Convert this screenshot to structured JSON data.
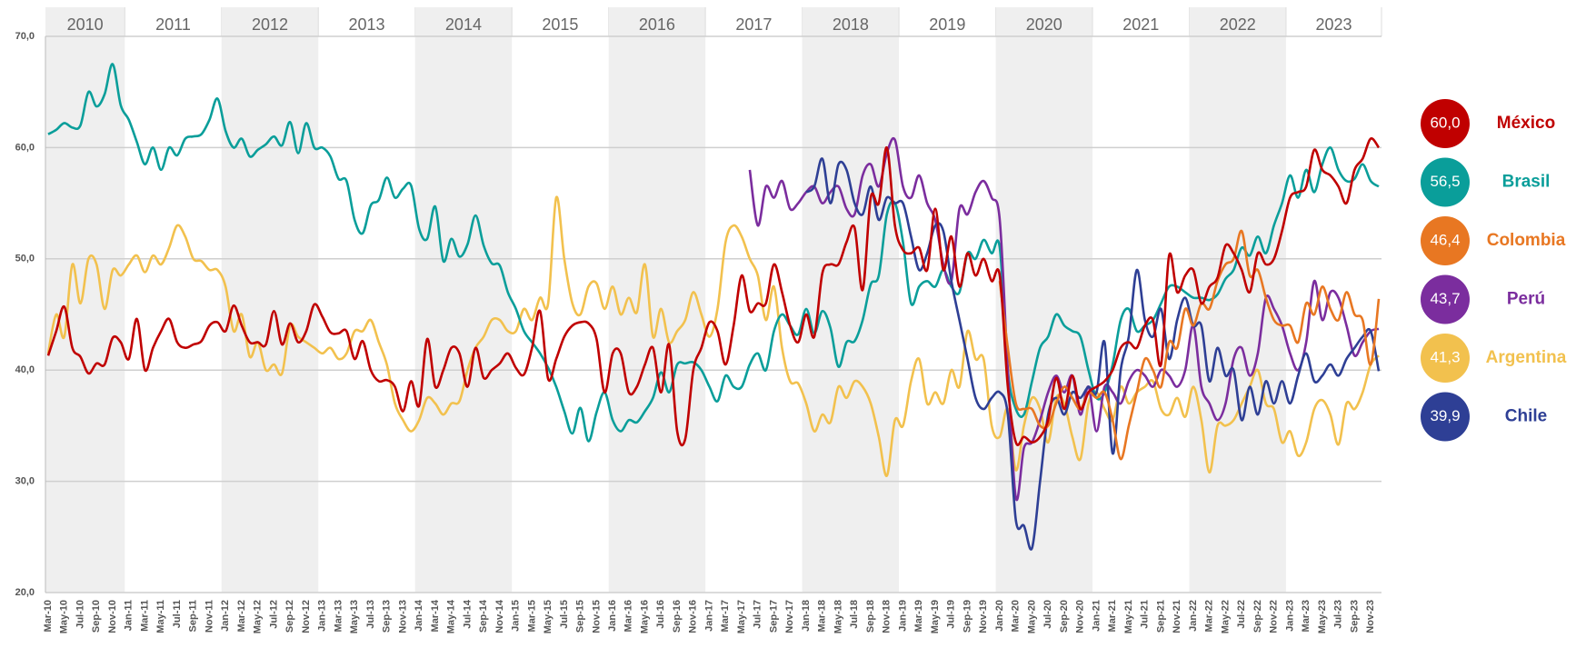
{
  "chart_data": {
    "type": "line",
    "categories": [
      "Mar-10",
      null,
      "May-10",
      null,
      "Jul-10",
      null,
      "Sep-10",
      null,
      "Nov-10",
      null,
      "Jan-11",
      null,
      "Mar-11",
      null,
      "May-11",
      null,
      "Jul-11",
      null,
      "Sep-11",
      null,
      "Nov-11",
      null,
      "Jan-12",
      null,
      "Mar-12",
      null,
      "May-12",
      null,
      "Jul-12",
      null,
      "Sep-12",
      null,
      "Nov-12",
      null,
      "Jan-13",
      null,
      "Mar-13",
      null,
      "May-13",
      null,
      "Jul-13",
      null,
      "Sep-13",
      null,
      "Nov-13",
      null,
      "Jan-14",
      null,
      "Mar-14",
      null,
      "May-14",
      null,
      "Jul-14",
      null,
      "Sep-14",
      null,
      "Nov-14",
      null,
      "Jan-15",
      null,
      "Mar-15",
      null,
      "May-15",
      null,
      "Jul-15",
      null,
      "Sep-15",
      null,
      "Nov-15",
      null,
      "Jan-16",
      null,
      "Mar-16",
      null,
      "May-16",
      null,
      "Jul-16",
      null,
      "Sep-16",
      null,
      "Nov-16",
      null,
      "Jan-17",
      null,
      "Mar-17",
      null,
      "May-17",
      null,
      "Jul-17",
      null,
      "Sep-17",
      null,
      "Nov-17",
      null,
      "Jan-18",
      null,
      "Mar-18",
      null,
      "May-18",
      null,
      "Jul-18",
      null,
      "Sep-18",
      null,
      "Nov-18",
      null,
      "Jan-19",
      null,
      "Mar-19",
      null,
      "May-19",
      null,
      "Jul-19",
      null,
      "Sep-19",
      null,
      "Nov-19",
      null,
      "Jan-20",
      null,
      "Mar-20",
      null,
      "May-20",
      null,
      "Jul-20",
      null,
      "Sep-20",
      null,
      "Nov-20",
      null,
      "Jan-21",
      null,
      "Mar-21",
      null,
      "May-21",
      null,
      "Jul-21",
      null,
      "Sep-21",
      null,
      "Nov-21",
      null,
      "Jan-22",
      null,
      "Mar-22",
      null,
      "May-22",
      null,
      "Jul-22",
      null,
      "Sep-22",
      null,
      "Nov-22",
      null,
      "Jan-23",
      null,
      "Mar-23",
      null,
      "May-23",
      null,
      "Jul-23",
      null,
      "Sep-23",
      null,
      "Nov-23",
      null
    ],
    "years": [
      "2010",
      "2011",
      "2012",
      "2013",
      "2014",
      "2015",
      "2016",
      "2017",
      "2018",
      "2019",
      "2020",
      "2021",
      "2022",
      "2023"
    ],
    "shade_alternate_years": true,
    "ylim": [
      20,
      70
    ],
    "yticks": [
      {
        "value": 20,
        "label": "20,0"
      },
      {
        "value": 30,
        "label": "30,0"
      },
      {
        "value": 40,
        "label": "40,0"
      },
      {
        "value": 50,
        "label": "50,0"
      },
      {
        "value": 60,
        "label": "60,0"
      },
      {
        "value": 70,
        "label": "70,0"
      }
    ],
    "grid": true,
    "series": [
      {
        "name": "México",
        "color": "#c00000",
        "last_label": "60,0",
        "values": [
          41.3,
          43.5,
          45.7,
          42.0,
          41.2,
          39.7,
          40.6,
          40.5,
          42.9,
          42.5,
          41.0,
          44.6,
          40.0,
          42.0,
          43.5,
          44.6,
          42.5,
          42.0,
          42.3,
          42.6,
          44.0,
          44.3,
          43.5,
          45.8,
          44.0,
          42.5,
          42.5,
          42.3,
          45.3,
          42.3,
          44.2,
          42.5,
          43.5,
          45.9,
          44.8,
          43.4,
          43.3,
          43.5,
          41.0,
          42.6,
          40.0,
          39.0,
          39.1,
          38.5,
          36.3,
          39.0,
          36.8,
          42.8,
          38.5,
          40.0,
          42.0,
          41.5,
          38.5,
          42.0,
          39.3,
          40.0,
          40.6,
          41.5,
          40.2,
          39.6,
          42.0,
          45.3,
          39.2,
          41.0,
          43.0,
          44.0,
          44.3,
          44.2,
          42.8,
          38.0,
          41.5,
          41.5,
          38.0,
          38.5,
          40.5,
          42.0,
          38.0,
          42.3,
          34.5,
          33.8,
          40.0,
          42.0,
          44.3,
          43.5,
          40.5,
          44.0,
          48.5,
          45.3,
          46.0,
          46.0,
          49.5,
          47.0,
          44.0,
          42.5,
          45.0,
          43.0,
          48.7,
          49.5,
          49.5,
          51.5,
          52.8,
          47.2,
          55.5,
          55.0,
          60.0,
          53.0,
          50.8,
          50.5,
          51.0,
          49.0,
          54.5,
          49.0,
          52.0,
          47.5,
          50.5,
          48.5,
          50.0,
          48.0,
          48.5,
          38.5,
          33.5,
          34.0,
          33.5,
          34.0,
          35.5,
          39.3,
          36.5,
          39.5,
          36.5,
          38.0,
          38.5,
          39.0,
          40.0,
          42.0,
          42.5,
          42.0,
          44.0,
          44.5,
          40.5,
          50.3,
          47.0,
          48.5,
          49.0,
          46.0,
          47.5,
          48.3,
          51.2,
          50.5,
          49.0,
          47.0,
          50.5,
          49.5,
          50.0,
          52.5,
          55.5,
          56.0,
          56.5,
          59.8,
          58.0,
          57.5,
          56.5,
          55.0,
          58.0,
          59.0,
          60.8,
          60.0
        ]
      },
      {
        "name": "Brasil",
        "color": "#0a9e9a",
        "last_label": "56,5",
        "values": [
          61.2,
          61.6,
          62.2,
          61.8,
          62.0,
          65.0,
          63.7,
          64.8,
          67.5,
          63.8,
          62.5,
          60.5,
          58.5,
          60.0,
          58.0,
          60.0,
          59.3,
          60.8,
          61.0,
          61.2,
          62.5,
          64.4,
          61.5,
          60.0,
          60.8,
          59.2,
          59.8,
          60.3,
          61.0,
          60.2,
          62.3,
          59.5,
          62.2,
          60.0,
          60.0,
          59.2,
          57.2,
          57.0,
          53.5,
          52.3,
          54.8,
          55.3,
          57.3,
          55.5,
          56.3,
          56.6,
          52.7,
          51.8,
          54.7,
          49.8,
          51.8,
          50.2,
          51.3,
          53.9,
          51.2,
          49.6,
          49.4,
          47.0,
          45.5,
          43.5,
          42.5,
          41.5,
          40.2,
          38.5,
          36.3,
          34.3,
          36.6,
          33.6,
          36.2,
          38.0,
          35.5,
          34.5,
          35.5,
          35.3,
          36.3,
          37.5,
          39.8,
          38.0,
          40.5,
          40.6,
          40.7,
          40.0,
          38.5,
          37.2,
          39.5,
          38.5,
          38.5,
          40.5,
          41.5,
          40.0,
          43.5,
          45.0,
          44.0,
          43.2,
          45.5,
          43.3,
          45.3,
          43.8,
          40.3,
          42.5,
          42.6,
          44.5,
          47.7,
          48.5,
          54.0,
          55.0,
          51.5,
          46.0,
          47.5,
          48.0,
          47.5,
          49.0,
          47.5,
          47.0,
          50.5,
          50.0,
          51.7,
          50.5,
          51.0,
          40.0,
          36.5,
          36.0,
          39.0,
          42.0,
          43.0,
          45.0,
          44.0,
          43.5,
          43.0,
          40.0,
          37.5,
          38.0,
          40.5,
          44.5,
          45.5,
          43.5,
          44.0,
          44.5,
          46.0,
          47.5,
          47.5,
          47.0,
          46.5,
          46.5,
          46.3,
          46.8,
          48.2,
          49.0,
          51.0,
          50.3,
          52.0,
          50.5,
          53.0,
          55.0,
          57.5,
          55.5,
          58.0,
          56.0,
          58.5,
          60.0,
          58.0,
          57.0,
          57.2,
          58.5,
          57.0,
          56.5
        ]
      },
      {
        "name": "Colombia",
        "color": "#e87722",
        "last_label": "46,4",
        "values": [
          null,
          null,
          null,
          null,
          null,
          null,
          null,
          null,
          null,
          null,
          null,
          null,
          null,
          null,
          null,
          null,
          null,
          null,
          null,
          null,
          null,
          null,
          null,
          null,
          null,
          null,
          null,
          null,
          null,
          null,
          null,
          null,
          null,
          null,
          null,
          null,
          null,
          null,
          null,
          null,
          null,
          null,
          null,
          null,
          null,
          null,
          null,
          null,
          null,
          null,
          null,
          null,
          null,
          null,
          null,
          null,
          null,
          null,
          null,
          null,
          null,
          null,
          null,
          null,
          null,
          null,
          null,
          null,
          null,
          null,
          null,
          null,
          null,
          null,
          null,
          null,
          null,
          null,
          null,
          null,
          null,
          null,
          null,
          null,
          null,
          null,
          null,
          null,
          null,
          null,
          null,
          null,
          null,
          null,
          null,
          null,
          null,
          null,
          null,
          null,
          null,
          null,
          null,
          null,
          null,
          null,
          null,
          null,
          null,
          null,
          null,
          null,
          null,
          null,
          null,
          null,
          null,
          null,
          48.0,
          42.0,
          37.0,
          36.5,
          36.5,
          35.0,
          35.0,
          37.0,
          38.5,
          37.5,
          36.5,
          38.0,
          37.5,
          38.0,
          35.5,
          32.0,
          35.0,
          38.0,
          41.0,
          40.0,
          38.5,
          42.5,
          42.0,
          45.5,
          44.0,
          46.0,
          45.5,
          48.0,
          49.5,
          50.0,
          52.5,
          48.5,
          49.0,
          46.5,
          44.5,
          44.0,
          44.0,
          42.5,
          46.0,
          45.0,
          47.5,
          45.5,
          44.5,
          47.0,
          45.0,
          44.5,
          40.5,
          46.4
        ]
      },
      {
        "name": "Perú",
        "color": "#7b2d9e",
        "last_label": "43,7",
        "values": [
          null,
          null,
          null,
          null,
          null,
          null,
          null,
          null,
          null,
          null,
          null,
          null,
          null,
          null,
          null,
          null,
          null,
          null,
          null,
          null,
          null,
          null,
          null,
          null,
          null,
          null,
          null,
          null,
          null,
          null,
          null,
          null,
          null,
          null,
          null,
          null,
          null,
          null,
          null,
          null,
          null,
          null,
          null,
          null,
          null,
          null,
          null,
          null,
          null,
          null,
          null,
          null,
          null,
          null,
          null,
          null,
          null,
          null,
          null,
          null,
          null,
          null,
          null,
          null,
          null,
          null,
          null,
          null,
          null,
          null,
          null,
          null,
          null,
          null,
          null,
          null,
          null,
          null,
          null,
          null,
          null,
          null,
          null,
          null,
          null,
          null,
          null,
          58.0,
          53.0,
          56.5,
          55.5,
          57.0,
          54.5,
          55.0,
          56.0,
          56.5,
          55.0,
          56.0,
          56.5,
          54.5,
          54.0,
          57.5,
          58.5,
          56.5,
          59.5,
          60.7,
          56.5,
          55.5,
          57.5,
          55.0,
          53.5,
          49.5,
          48.0,
          54.5,
          54.0,
          56.0,
          57.0,
          55.5,
          53.5,
          40.0,
          28.5,
          33.0,
          33.5,
          35.5,
          38.0,
          39.5,
          38.0,
          39.5,
          36.0,
          38.5,
          34.5,
          38.5,
          38.0,
          37.0,
          39.0,
          40.0,
          39.5,
          38.5,
          40.0,
          39.5,
          38.5,
          40.0,
          44.0,
          38.5,
          37.0,
          35.5,
          37.0,
          41.0,
          42.0,
          39.5,
          41.5,
          46.5,
          45.5,
          44.0,
          41.5,
          40.0,
          42.5,
          48.0,
          44.5,
          47.0,
          46.5,
          44.0,
          41.3,
          42.5,
          43.5,
          43.7
        ]
      },
      {
        "name": "Argentina",
        "color": "#f2c14e",
        "last_label": "41,3",
        "values": [
          41.5,
          45.0,
          43.0,
          49.5,
          46.0,
          50.0,
          49.5,
          45.5,
          49.0,
          48.5,
          49.5,
          50.3,
          48.8,
          50.3,
          49.5,
          51.0,
          53.0,
          52.0,
          50.0,
          49.8,
          49.0,
          49.0,
          47.5,
          43.5,
          45.0,
          41.2,
          42.5,
          40.0,
          40.5,
          39.7,
          44.0,
          43.0,
          42.5,
          42.0,
          41.5,
          42.0,
          41.0,
          41.5,
          43.5,
          43.5,
          44.5,
          42.5,
          40.5,
          37.0,
          35.5,
          34.5,
          35.5,
          37.5,
          37.0,
          36.0,
          37.0,
          37.2,
          40.0,
          42.0,
          43.0,
          44.5,
          44.5,
          43.5,
          43.5,
          45.5,
          44.5,
          46.5,
          46.0,
          55.5,
          50.0,
          46.0,
          45.0,
          47.5,
          47.8,
          45.5,
          47.5,
          45.0,
          46.5,
          45.2,
          49.5,
          43.0,
          45.5,
          42.5,
          43.5,
          44.5,
          47.0,
          45.0,
          43.0,
          45.5,
          51.5,
          53.0,
          52.0,
          50.0,
          48.5,
          44.5,
          47.5,
          42.0,
          39.0,
          38.8,
          37.0,
          34.5,
          36.0,
          35.3,
          38.5,
          37.5,
          39.0,
          38.5,
          37.0,
          34.0,
          30.5,
          35.5,
          35.0,
          39.0,
          41.0,
          37.0,
          38.0,
          37.0,
          40.0,
          38.5,
          43.5,
          41.0,
          41.0,
          35.0,
          34.0,
          36.5,
          31.0,
          35.0,
          37.5,
          36.5,
          33.5,
          37.5,
          37.0,
          34.0,
          32.0,
          37.0,
          38.0,
          36.5,
          35.5,
          38.5,
          37.0,
          38.0,
          38.5,
          39.0,
          36.5,
          36.0,
          37.5,
          35.8,
          38.5,
          35.5,
          30.8,
          35.0,
          35.0,
          35.5,
          37.0,
          38.5,
          40.0,
          37.0,
          36.5,
          33.5,
          34.5,
          32.3,
          33.5,
          36.5,
          37.3,
          36.0,
          33.3,
          37.0,
          36.5,
          38.0,
          40.5,
          41.3
        ]
      },
      {
        "name": "Chile",
        "color": "#2e3f95",
        "last_label": "39,9",
        "values": [
          null,
          null,
          null,
          null,
          null,
          null,
          null,
          null,
          null,
          null,
          null,
          null,
          null,
          null,
          null,
          null,
          null,
          null,
          null,
          null,
          null,
          null,
          null,
          null,
          null,
          null,
          null,
          null,
          null,
          null,
          null,
          null,
          null,
          null,
          null,
          null,
          null,
          null,
          null,
          null,
          null,
          null,
          null,
          null,
          null,
          null,
          null,
          null,
          null,
          null,
          null,
          null,
          null,
          null,
          null,
          null,
          null,
          null,
          null,
          null,
          null,
          null,
          null,
          null,
          null,
          null,
          null,
          null,
          null,
          null,
          null,
          null,
          null,
          null,
          null,
          null,
          null,
          null,
          null,
          null,
          null,
          null,
          null,
          null,
          null,
          null,
          null,
          null,
          null,
          null,
          null,
          null,
          null,
          null,
          56.0,
          56.5,
          59.0,
          55.0,
          58.5,
          58.0,
          55.0,
          54.0,
          56.5,
          53.5,
          55.5,
          55.0,
          55.0,
          52.0,
          49.0,
          50.5,
          53.0,
          52.5,
          48.0,
          44.5,
          41.0,
          37.5,
          36.5,
          37.5,
          38.0,
          36.0,
          26.5,
          26.0,
          24.0,
          30.0,
          36.0,
          37.5,
          36.0,
          38.0,
          37.5,
          38.5,
          38.0,
          42.5,
          32.5,
          40.0,
          43.0,
          49.0,
          44.5,
          43.0,
          45.5,
          41.0,
          44.5,
          46.5,
          44.0,
          44.0,
          39.0,
          42.0,
          39.5,
          40.0,
          35.5,
          38.5,
          36.0,
          39.0,
          37.0,
          39.0,
          37.0,
          39.5,
          41.5,
          39.0,
          39.5,
          40.5,
          39.5,
          41.0,
          42.0,
          43.0,
          43.5,
          39.9
        ]
      }
    ]
  }
}
